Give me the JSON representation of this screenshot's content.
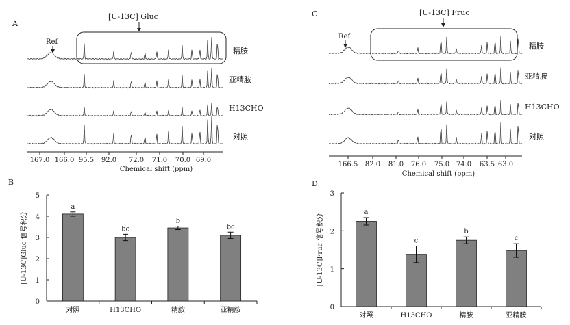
{
  "panels": {
    "A": {
      "letter": "A",
      "annotation": "[U-13C] Gluc",
      "ref_label": "Ref",
      "x_axis_label": "Chemical shift (ppm)",
      "ticks": [
        "167.0",
        "166.0",
        "95.5",
        "92.0",
        "72.0",
        "71.0",
        "70.0",
        "69.0"
      ],
      "traces": [
        {
          "label": "精胺",
          "scale": 1.0,
          "peaks": [
            0.29,
            0.44,
            0.53,
            0.6,
            0.66,
            0.72,
            0.79,
            0.84,
            0.88,
            0.92,
            0.94,
            0.97
          ]
        },
        {
          "label": "亚精胺",
          "scale": 0.9,
          "peaks": [
            0.29,
            0.44,
            0.53,
            0.6,
            0.66,
            0.72,
            0.79,
            0.84,
            0.88,
            0.92,
            0.94,
            0.97
          ]
        },
        {
          "label": "H13CHO",
          "scale": 0.6,
          "peaks": [
            0.29,
            0.44,
            0.53,
            0.6,
            0.66,
            0.72,
            0.79,
            0.84,
            0.88,
            0.92,
            0.94,
            0.97
          ]
        },
        {
          "label": "对照",
          "scale": 1.3,
          "peaks": [
            0.29,
            0.44,
            0.53,
            0.6,
            0.66,
            0.72,
            0.79,
            0.84,
            0.88,
            0.92,
            0.94,
            0.97
          ]
        }
      ]
    },
    "C": {
      "letter": "C",
      "annotation": "[U-13C] Fruc",
      "ref_label": "Ref",
      "x_axis_label": "Chemical shift (ppm)",
      "ticks": [
        "166.5",
        "82.0",
        "81.0",
        "76.0",
        "75.0",
        "74.0",
        "63.5",
        "63.0"
      ],
      "traces": [
        {
          "label": "精胺",
          "scale": 1.0,
          "peaks": [
            0.36,
            0.46,
            0.58,
            0.61,
            0.66,
            0.79,
            0.82,
            0.86,
            0.89,
            0.94,
            0.98
          ]
        },
        {
          "label": "亚精胺",
          "scale": 0.9,
          "peaks": [
            0.36,
            0.46,
            0.58,
            0.61,
            0.66,
            0.79,
            0.82,
            0.86,
            0.89,
            0.94,
            0.98
          ]
        },
        {
          "label": "H13CHO",
          "scale": 0.8,
          "peaks": [
            0.36,
            0.46,
            0.58,
            0.61,
            0.66,
            0.79,
            0.82,
            0.86,
            0.89,
            0.94,
            0.98
          ]
        },
        {
          "label": "对照",
          "scale": 1.2,
          "peaks": [
            0.36,
            0.46,
            0.58,
            0.61,
            0.66,
            0.79,
            0.82,
            0.86,
            0.89,
            0.94,
            0.98
          ]
        }
      ]
    }
  },
  "chart_data": [
    {
      "panel": "B",
      "type": "bar",
      "ylabel": "[U-13C]Gluc 信号积分",
      "categories": [
        "对照",
        "H13CHO",
        "精胺",
        "亚精胺"
      ],
      "values": [
        4.1,
        3.0,
        3.45,
        3.1
      ],
      "errors": [
        0.1,
        0.15,
        0.08,
        0.15
      ],
      "letters": [
        "a",
        "bc",
        "b",
        "bc"
      ],
      "ylim": [
        0,
        5
      ],
      "yticks": [
        "0",
        "1",
        "2",
        "3",
        "4",
        "5"
      ]
    },
    {
      "panel": "D",
      "type": "bar",
      "ylabel": "[U-13C]Fruc 信号积分",
      "categories": [
        "对照",
        "H13CHO",
        "精胺",
        "亚精胺"
      ],
      "values": [
        2.25,
        1.38,
        1.75,
        1.48
      ],
      "errors": [
        0.1,
        0.22,
        0.09,
        0.18
      ],
      "letters": [
        "a",
        "c",
        "b",
        "c"
      ],
      "ylim": [
        0,
        3
      ],
      "yticks": [
        "0",
        "1",
        "2",
        "3"
      ]
    }
  ]
}
